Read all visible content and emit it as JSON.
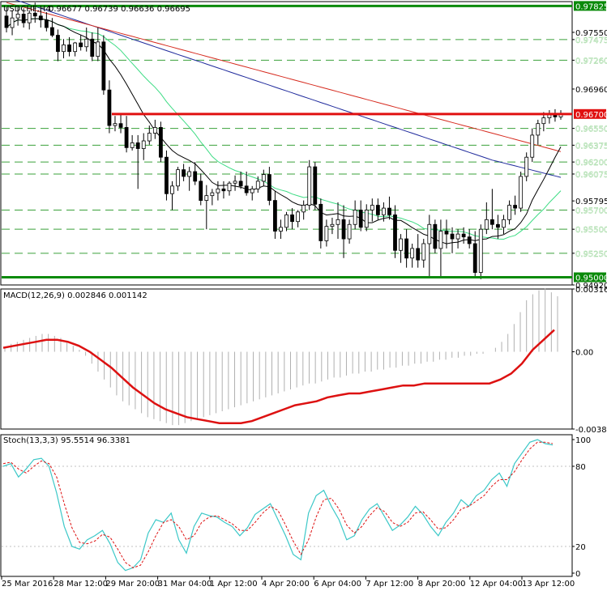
{
  "header": {
    "symbol": "USDCHF,H4",
    "ohlc": "0.96677 0.96739 0.96636 0.96695"
  },
  "panels": {
    "macd_label": "MACD(12,26,9) 0.002846 0.001142",
    "stoch_label": "Stoch(13,3,3) 95.5514 96.3381"
  },
  "colors": {
    "candle_up": "#ffffff",
    "candle_down": "#000000",
    "ma_fast": "#000000",
    "ma_mid": "#3ddc84",
    "ma_slow": "#d62a1e",
    "ma_long": "#1f2a9c",
    "level_green": "#0a8a0a",
    "level_red": "#e01010",
    "macd_signal": "#d11",
    "macd_hist": "#b0b0b0",
    "stoch_main": "#3cc8c8",
    "stoch_signal": "#d11"
  },
  "chart_data": [
    {
      "type": "candlestick",
      "title": "USDCHF,H4",
      "ylim": [
        0.9492,
        0.9787
      ],
      "y_ticks": [
        "0.97825",
        "0.97550",
        "0.97475",
        "0.97260",
        "0.96960",
        "0.96700",
        "0.96550",
        "0.96375",
        "0.96200",
        "0.96075",
        "0.95795",
        "0.95700",
        "0.95500",
        "0.95250",
        "0.95000",
        "0.94920"
      ],
      "highlighted_ticks": [
        "0.97825",
        "0.96700",
        "0.95000"
      ],
      "x_labels": [
        "25 Mar 2016",
        "28 Mar 12:00",
        "29 Mar 20:00",
        "31 Mar 04:00",
        "1 Apr 12:00",
        "4 Apr 20:00",
        "6 Apr 04:00",
        "7 Apr 12:00",
        "8 Apr 20:00",
        "12 Apr 04:00",
        "13 Apr 12:00"
      ],
      "levels": [
        {
          "value": 0.97825,
          "color": "green"
        },
        {
          "value": 0.967,
          "color": "red"
        },
        {
          "value": 0.95,
          "color": "green"
        }
      ],
      "dashed_levels": [
        0.97475,
        0.9726,
        0.9655,
        0.96375,
        0.962,
        0.96075,
        0.957,
        0.955,
        0.9525
      ],
      "candles": [
        [
          0.9772,
          0.9783,
          0.9755,
          0.976
        ],
        [
          0.976,
          0.9778,
          0.9752,
          0.977
        ],
        [
          0.977,
          0.9782,
          0.9762,
          0.9774
        ],
        [
          0.9774,
          0.978,
          0.976,
          0.9765
        ],
        [
          0.9765,
          0.9778,
          0.9758,
          0.9775
        ],
        [
          0.9775,
          0.9786,
          0.9765,
          0.9772
        ],
        [
          0.9772,
          0.9778,
          0.976,
          0.9768
        ],
        [
          0.9768,
          0.9776,
          0.9756,
          0.976
        ],
        [
          0.976,
          0.977,
          0.975,
          0.9752
        ],
        [
          0.9752,
          0.9758,
          0.9725,
          0.9735
        ],
        [
          0.9735,
          0.9748,
          0.9728,
          0.9742
        ],
        [
          0.9742,
          0.975,
          0.973,
          0.9735
        ],
        [
          0.9735,
          0.9745,
          0.973,
          0.9744
        ],
        [
          0.9744,
          0.9752,
          0.9736,
          0.974
        ],
        [
          0.974,
          0.976,
          0.9735,
          0.9748
        ],
        [
          0.9748,
          0.9755,
          0.9725,
          0.973
        ],
        [
          0.973,
          0.976,
          0.9725,
          0.9745
        ],
        [
          0.9745,
          0.9752,
          0.969,
          0.9695
        ],
        [
          0.9695,
          0.9705,
          0.965,
          0.9658
        ],
        [
          0.9658,
          0.9668,
          0.9652,
          0.966
        ],
        [
          0.966,
          0.967,
          0.965,
          0.9656
        ],
        [
          0.9656,
          0.9668,
          0.963,
          0.9635
        ],
        [
          0.9635,
          0.9648,
          0.9632,
          0.964
        ],
        [
          0.964,
          0.9648,
          0.9592,
          0.9634
        ],
        [
          0.9634,
          0.965,
          0.9622,
          0.9642
        ],
        [
          0.9642,
          0.9658,
          0.9638,
          0.965
        ],
        [
          0.965,
          0.9664,
          0.9644,
          0.9656
        ],
        [
          0.9656,
          0.9662,
          0.962,
          0.9625
        ],
        [
          0.9625,
          0.9632,
          0.958,
          0.9587
        ],
        [
          0.9587,
          0.96,
          0.957,
          0.9595
        ],
        [
          0.9595,
          0.9615,
          0.959,
          0.9612
        ],
        [
          0.9612,
          0.9618,
          0.96,
          0.9605
        ],
        [
          0.9605,
          0.9615,
          0.959,
          0.961
        ],
        [
          0.961,
          0.962,
          0.9596,
          0.96
        ],
        [
          0.96,
          0.9608,
          0.9575,
          0.958
        ],
        [
          0.958,
          0.9596,
          0.955,
          0.9585
        ],
        [
          0.9585,
          0.9592,
          0.9575,
          0.9588
        ],
        [
          0.9588,
          0.96,
          0.958,
          0.9592
        ],
        [
          0.9592,
          0.96,
          0.9582,
          0.959
        ],
        [
          0.959,
          0.96,
          0.9585,
          0.9598
        ],
        [
          0.9598,
          0.9606,
          0.959,
          0.96
        ],
        [
          0.96,
          0.961,
          0.9592,
          0.9595
        ],
        [
          0.9595,
          0.961,
          0.9585,
          0.9588
        ],
        [
          0.9588,
          0.9595,
          0.958,
          0.9592
        ],
        [
          0.9592,
          0.9605,
          0.9588,
          0.96
        ],
        [
          0.96,
          0.9612,
          0.9595,
          0.9607
        ],
        [
          0.9607,
          0.9615,
          0.9575,
          0.958
        ],
        [
          0.958,
          0.959,
          0.954,
          0.9548
        ],
        [
          0.9548,
          0.956,
          0.954,
          0.9552
        ],
        [
          0.9552,
          0.9568,
          0.9548,
          0.9565
        ],
        [
          0.9565,
          0.9572,
          0.955,
          0.9558
        ],
        [
          0.9558,
          0.957,
          0.9552,
          0.9568
        ],
        [
          0.9568,
          0.958,
          0.956,
          0.9575
        ],
        [
          0.9575,
          0.9622,
          0.957,
          0.9615
        ],
        [
          0.9615,
          0.962,
          0.957,
          0.9576
        ],
        [
          0.9576,
          0.9582,
          0.953,
          0.9538
        ],
        [
          0.9538,
          0.956,
          0.9532,
          0.9553
        ],
        [
          0.9553,
          0.9562,
          0.9545,
          0.9555
        ],
        [
          0.9555,
          0.9578,
          0.954,
          0.956
        ],
        [
          0.956,
          0.9575,
          0.952,
          0.954
        ],
        [
          0.954,
          0.956,
          0.9535,
          0.9555
        ],
        [
          0.9555,
          0.958,
          0.955,
          0.957
        ],
        [
          0.957,
          0.958,
          0.9548,
          0.9552
        ],
        [
          0.9552,
          0.9576,
          0.9548,
          0.957
        ],
        [
          0.957,
          0.9582,
          0.9558,
          0.9575
        ],
        [
          0.9575,
          0.9582,
          0.956,
          0.9565
        ],
        [
          0.9565,
          0.9578,
          0.9558,
          0.9572
        ],
        [
          0.9572,
          0.9584,
          0.956,
          0.9565
        ],
        [
          0.9565,
          0.9575,
          0.952,
          0.9528
        ],
        [
          0.9528,
          0.9545,
          0.9515,
          0.954
        ],
        [
          0.954,
          0.955,
          0.951,
          0.952
        ],
        [
          0.952,
          0.9535,
          0.951,
          0.953
        ],
        [
          0.953,
          0.9545,
          0.951,
          0.9518
        ],
        [
          0.9518,
          0.954,
          0.951,
          0.9535
        ],
        [
          0.9535,
          0.9565,
          0.95,
          0.9555
        ],
        [
          0.9555,
          0.956,
          0.9525,
          0.953
        ],
        [
          0.953,
          0.956,
          0.95,
          0.9548
        ],
        [
          0.9548,
          0.956,
          0.953,
          0.9545
        ],
        [
          0.9545,
          0.9552,
          0.9525,
          0.954
        ],
        [
          0.954,
          0.955,
          0.953,
          0.9545
        ],
        [
          0.9545,
          0.9552,
          0.9535,
          0.9542
        ],
        [
          0.9542,
          0.955,
          0.953,
          0.9535
        ],
        [
          0.9535,
          0.9548,
          0.95,
          0.9505
        ],
        [
          0.9505,
          0.9555,
          0.9498,
          0.955
        ],
        [
          0.955,
          0.9578,
          0.9545,
          0.956
        ],
        [
          0.956,
          0.9592,
          0.955,
          0.9555
        ],
        [
          0.9555,
          0.9565,
          0.954,
          0.9552
        ],
        [
          0.9552,
          0.9565,
          0.9545,
          0.956
        ],
        [
          0.956,
          0.958,
          0.9555,
          0.9575
        ],
        [
          0.9575,
          0.9585,
          0.9565,
          0.9572
        ],
        [
          0.9572,
          0.961,
          0.9568,
          0.9605
        ],
        [
          0.9605,
          0.963,
          0.96,
          0.9625
        ],
        [
          0.9625,
          0.9655,
          0.962,
          0.9648
        ],
        [
          0.9648,
          0.9664,
          0.9638,
          0.966
        ],
        [
          0.966,
          0.9672,
          0.9652,
          0.9666
        ],
        [
          0.9666,
          0.9674,
          0.966,
          0.967
        ],
        [
          0.967,
          0.9675,
          0.9662,
          0.9667
        ],
        [
          0.9667,
          0.9674,
          0.9664,
          0.967
        ]
      ]
    },
    {
      "type": "macd",
      "title": "MACD(12,26,9)",
      "ylim": [
        -0.003899,
        0.003167
      ],
      "y_ticks": [
        "0.003167",
        "0.00",
        "-0.003899"
      ],
      "histogram": [
        0.0002,
        0.0004,
        0.0005,
        0.0006,
        0.0007,
        0.0008,
        0.0009,
        0.0009,
        0.0008,
        0.0007,
        0.0005,
        0.0003,
        0.0001,
        -0.0002,
        -0.0006,
        -0.001,
        -0.0014,
        -0.0018,
        -0.0022,
        -0.0025,
        -0.0027,
        -0.0029,
        -0.0031,
        -0.0033,
        -0.0034,
        -0.0035,
        -0.0036,
        -0.0037,
        -0.0037,
        -0.0036,
        -0.0035,
        -0.0034,
        -0.0033,
        -0.0032,
        -0.0031,
        -0.003,
        -0.0029,
        -0.0028,
        -0.0027,
        -0.0026,
        -0.0025,
        -0.0024,
        -0.0023,
        -0.0022,
        -0.0021,
        -0.002,
        -0.0019,
        -0.0018,
        -0.0017,
        -0.0016,
        -0.0016,
        -0.0015,
        -0.0014,
        -0.0013,
        -0.0013,
        -0.0012,
        -0.0011,
        -0.0011,
        -0.001,
        -0.001,
        -0.0009,
        -0.0009,
        -0.0008,
        -0.0008,
        -0.0007,
        -0.0007,
        -0.0006,
        -0.0006,
        -0.0005,
        -0.0005,
        -0.0004,
        -0.0004,
        -0.0003,
        -0.0003,
        -0.0002,
        -0.0002,
        -0.0001,
        -0.0001,
        0.0,
        0.0002,
        0.0005,
        0.0009,
        0.0014,
        0.002,
        0.0026,
        0.0029,
        0.0031,
        0.0032,
        0.003,
        0.0028
      ],
      "signal": [
        0.0002,
        0.0003,
        0.0004,
        0.0005,
        0.0006,
        0.0006,
        0.0005,
        0.0003,
        0.0,
        -0.0004,
        -0.0008,
        -0.0013,
        -0.0018,
        -0.0022,
        -0.0026,
        -0.0029,
        -0.0031,
        -0.0033,
        -0.0034,
        -0.0035,
        -0.0036,
        -0.0036,
        -0.0036,
        -0.0035,
        -0.0033,
        -0.0031,
        -0.0029,
        -0.0027,
        -0.0026,
        -0.0025,
        -0.0023,
        -0.0022,
        -0.0021,
        -0.0021,
        -0.002,
        -0.0019,
        -0.0018,
        -0.0017,
        -0.0017,
        -0.0016,
        -0.0016,
        -0.0016,
        -0.0016,
        -0.0016,
        -0.0016,
        -0.0016,
        -0.0014,
        -0.0011,
        -0.0006,
        0.0001,
        0.0006,
        0.0011
      ]
    },
    {
      "type": "stochastic",
      "title": "Stoch(13,3,3)",
      "ylim": [
        0,
        100
      ],
      "y_ticks": [
        "100",
        "80",
        "20",
        "0"
      ],
      "main": [
        80,
        82,
        72,
        78,
        85,
        86,
        80,
        60,
        35,
        20,
        18,
        25,
        28,
        32,
        22,
        8,
        2,
        4,
        10,
        30,
        40,
        38,
        45,
        25,
        15,
        35,
        45,
        43,
        42,
        38,
        35,
        28,
        34,
        44,
        48,
        52,
        40,
        28,
        14,
        10,
        45,
        58,
        62,
        50,
        40,
        25,
        28,
        40,
        48,
        52,
        42,
        32,
        36,
        42,
        50,
        44,
        35,
        28,
        38,
        45,
        55,
        50,
        58,
        62,
        70,
        75,
        65,
        82,
        90,
        98,
        100,
        97,
        96
      ],
      "signal": [
        82,
        83,
        78,
        75,
        80,
        84,
        82,
        72,
        52,
        34,
        23,
        22,
        24,
        29,
        27,
        18,
        8,
        4,
        6,
        16,
        28,
        38,
        40,
        35,
        25,
        28,
        38,
        42,
        43,
        40,
        37,
        32,
        32,
        38,
        45,
        50,
        47,
        36,
        24,
        14,
        25,
        42,
        55,
        56,
        48,
        36,
        30,
        35,
        43,
        49,
        46,
        38,
        35,
        38,
        45,
        46,
        40,
        33,
        34,
        40,
        48,
        50,
        54,
        58,
        65,
        70,
        70,
        76,
        85,
        93,
        98,
        98,
        97
      ]
    }
  ]
}
